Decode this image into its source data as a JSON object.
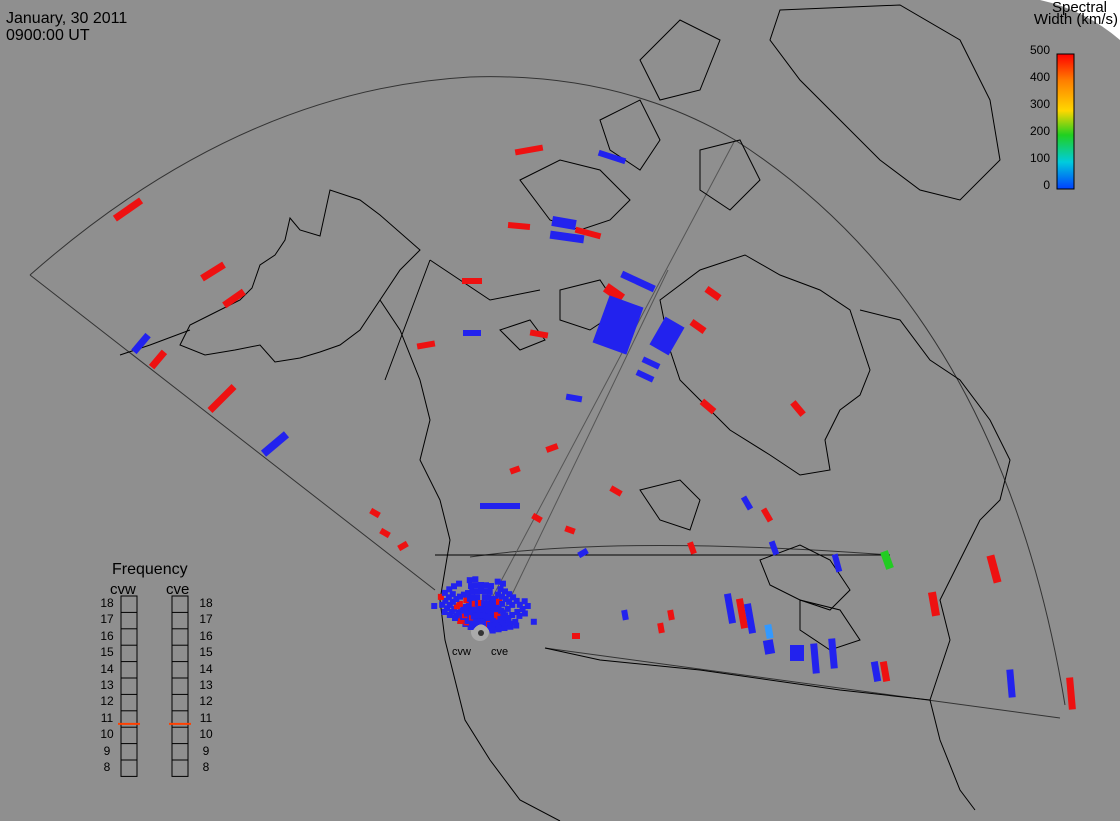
{
  "header": {
    "date": "January, 30 2011",
    "time": "0900:00 UT"
  },
  "colorbar": {
    "title_line1": "Spectral",
    "title_line2": "Width (km/s)",
    "ticks": [
      "500",
      "400",
      "300",
      "200",
      "100",
      "0"
    ],
    "colors": [
      "#ff0000",
      "#ff8000",
      "#ffd700",
      "#20d020",
      "#00ccdd",
      "#0040ff"
    ]
  },
  "frequency_panel": {
    "title": "Frequency",
    "radars": [
      "cvw",
      "cve"
    ],
    "levels": [
      "18",
      "17",
      "16",
      "15",
      "14",
      "13",
      "12",
      "11",
      "10",
      "9",
      "8"
    ],
    "cvw_frequency_mhz": 10.7,
    "cve_frequency_mhz": 10.7,
    "marker_color": "#ff4000"
  },
  "sites": {
    "west": "cvw",
    "east": "cve"
  },
  "colors": {
    "background": "#8f8f8f",
    "coast": "#000000",
    "low_width": "#2222ee",
    "high_width": "#ee1111",
    "mid_width": "#22cc22",
    "cyan": "#3399ff"
  }
}
